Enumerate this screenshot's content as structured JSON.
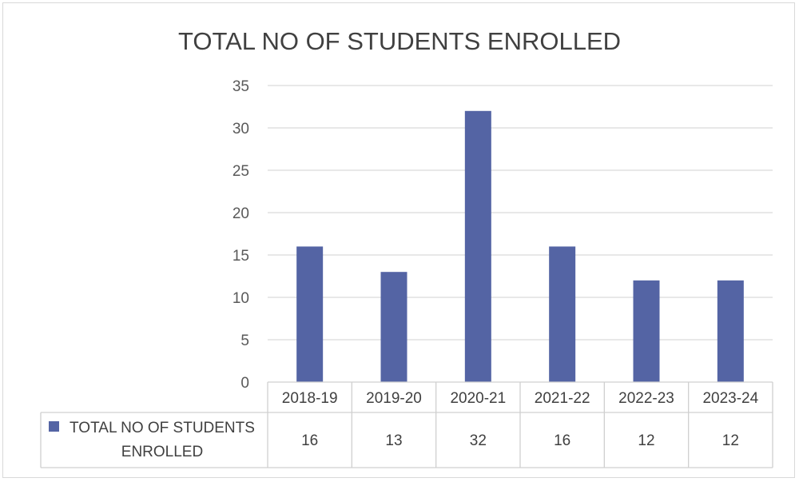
{
  "chart_data": {
    "type": "bar",
    "title": "TOTAL NO OF STUDENTS ENROLLED",
    "categories": [
      "2018-19",
      "2019-20",
      "2020-21",
      "2021-22",
      "2022-23",
      "2023-24"
    ],
    "series": [
      {
        "name": "TOTAL NO OF STUDENTS ENROLLED",
        "values": [
          16,
          13,
          32,
          16,
          12,
          12
        ],
        "color": "#5464a4"
      }
    ],
    "ylim": [
      0,
      35
    ],
    "yticks": [
      0,
      5,
      10,
      15,
      20,
      25,
      30,
      35
    ],
    "grid": true,
    "data_table": true,
    "legend_placement": "data-table-left",
    "legend_lines": [
      "TOTAL NO OF STUDENTS",
      "ENROLLED"
    ]
  }
}
